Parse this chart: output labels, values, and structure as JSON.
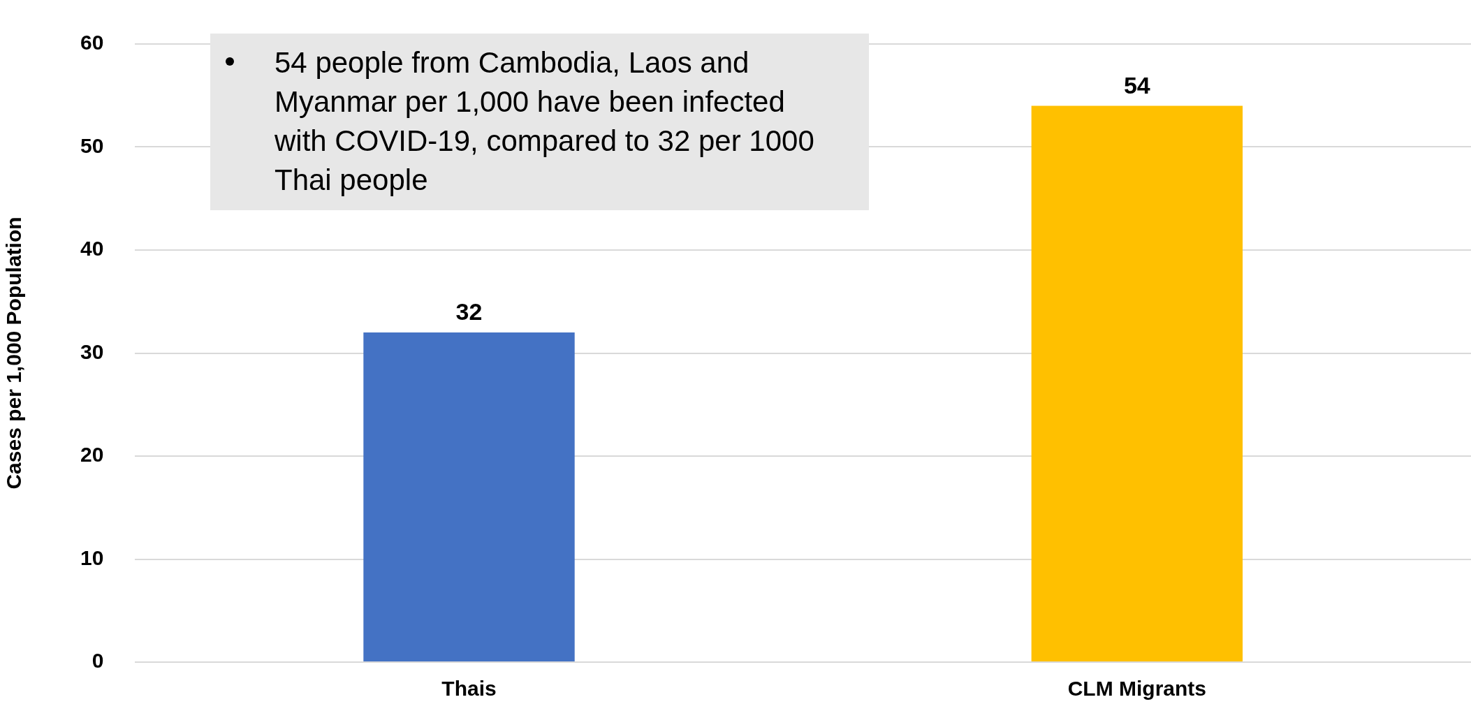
{
  "chart_data": {
    "type": "bar",
    "ylabel": "Cases per 1,000 Population",
    "categories": [
      "Thais",
      "CLM Migrants"
    ],
    "values": [
      32,
      54
    ],
    "colors": [
      "#4472c4",
      "#ffc000"
    ],
    "ylim": [
      0,
      60
    ],
    "yticks": [
      0,
      10,
      20,
      30,
      40,
      50,
      60
    ],
    "grid": "y",
    "legend": false,
    "data_labels": true,
    "annotations": [
      "54 people from Cambodia, Laos and Myanmar per 1,000 have been infected with COVID-19, compared to 32 per 1000 Thai people"
    ]
  }
}
